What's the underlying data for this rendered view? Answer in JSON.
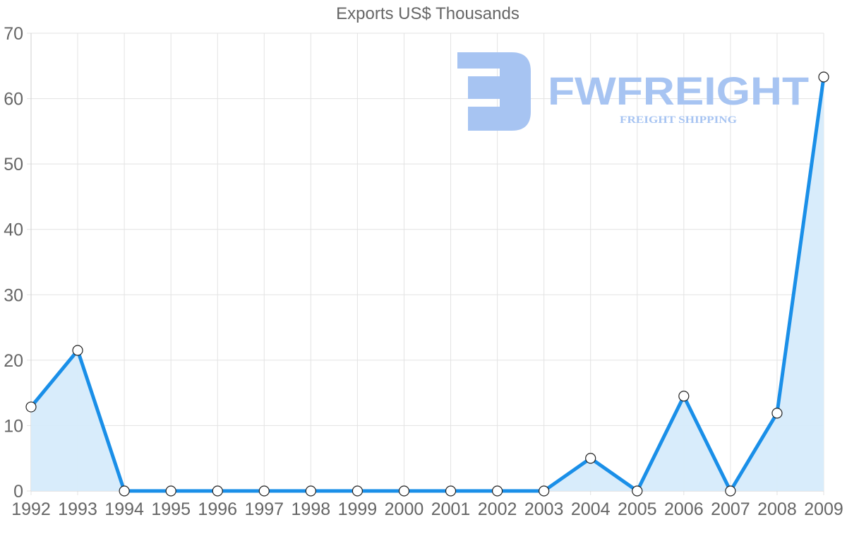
{
  "chart_data": {
    "type": "line",
    "title": "Exports US$ Thousands",
    "xlabel": "",
    "ylabel": "",
    "categories": [
      "1992",
      "1993",
      "1994",
      "1995",
      "1996",
      "1997",
      "1998",
      "1999",
      "2000",
      "2001",
      "2002",
      "2003",
      "2004",
      "2005",
      "2006",
      "2007",
      "2008",
      "2009"
    ],
    "series": [
      {
        "name": "Exports US$ Thousands",
        "values": [
          12.85,
          21.5,
          0,
          0,
          0,
          0,
          0,
          0,
          0,
          0,
          0,
          0,
          5.0,
          0,
          14.5,
          0,
          11.9,
          63.3
        ],
        "color": "#1a8fe8",
        "fill": "#d6ebfb"
      }
    ],
    "ylim": [
      0,
      70
    ],
    "yticks": [
      0,
      10,
      20,
      30,
      40,
      50,
      60,
      70
    ],
    "grid": true,
    "legend": "none"
  },
  "watermark": {
    "brand": "FWFREIGHT",
    "tagline": "FREIGHT SHIPPING",
    "color": "#a7c4f2"
  }
}
